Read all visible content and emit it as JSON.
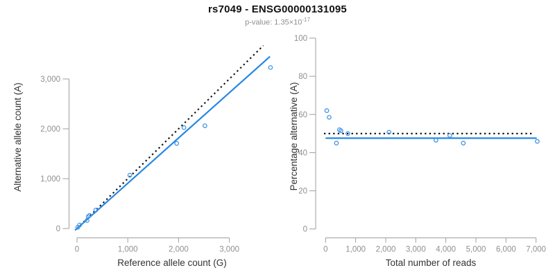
{
  "header": {
    "title": "rs7049 - ENSG00000131095",
    "subtitle_text": "p-value: 1.35×10",
    "subtitle_exponent": "-17"
  },
  "colors": {
    "accent_blue": "#2787e4",
    "point_blue": "#4093e6",
    "dotted_black": "#141414",
    "axis_gray": "#9e9e9e",
    "tick_label_gray": "#8f8f8f",
    "axis_title_dark": "#333333"
  },
  "chart_data": [
    {
      "type": "scatter",
      "name": "allele-count-scatter",
      "xlabel": "Reference allele count (G)",
      "ylabel": "Alternative allele count (A)",
      "xlim": [
        0,
        3930
      ],
      "ylim": [
        0,
        3950
      ],
      "grid": false,
      "xticks": [
        0,
        1000,
        2000,
        3000
      ],
      "xtick_labels": [
        "0",
        "1,000",
        "2,000",
        "3,000"
      ],
      "yticks": [
        0,
        1000,
        2000,
        3000
      ],
      "ytick_labels": [
        "0",
        "1,000",
        "2,000",
        "3,000"
      ],
      "points": [
        [
          15,
          25
        ],
        [
          50,
          70
        ],
        [
          198,
          162
        ],
        [
          221,
          239
        ],
        [
          247,
          263
        ],
        [
          370,
          370
        ],
        [
          1040,
          1070
        ],
        [
          1963,
          1707
        ],
        [
          2106,
          2024
        ],
        [
          2519,
          2061
        ],
        [
          3810,
          3230
        ]
      ],
      "lines": [
        {
          "style": "dotted",
          "name": "identity-line",
          "slope": 1,
          "intercept": 0
        },
        {
          "style": "solid",
          "name": "regression-line",
          "slope": 0.908,
          "intercept": 0
        }
      ]
    },
    {
      "type": "scatter",
      "name": "percentage-reads-scatter",
      "xlabel": "Total number of reads",
      "ylabel": "Percentage alternative (A)",
      "xlim": [
        0,
        7250
      ],
      "ylim": [
        0,
        100
      ],
      "grid": false,
      "xticks": [
        0,
        1000,
        2000,
        3000,
        4000,
        5000,
        6000,
        7000
      ],
      "xtick_labels": [
        "0",
        "1,000",
        "2,000",
        "3,000",
        "4,000",
        "5,000",
        "6,000",
        "7,000"
      ],
      "yticks": [
        0,
        20,
        40,
        60,
        80,
        100
      ],
      "ytick_labels": [
        "0",
        "20",
        "40",
        "60",
        "80",
        "100"
      ],
      "points": [
        [
          40,
          62
        ],
        [
          120,
          58.5
        ],
        [
          360,
          45
        ],
        [
          460,
          52
        ],
        [
          510,
          51.5
        ],
        [
          740,
          50
        ],
        [
          2110,
          50.7
        ],
        [
          3670,
          46.5
        ],
        [
          4130,
          49
        ],
        [
          4580,
          45
        ],
        [
          7040,
          45.9
        ]
      ],
      "lines": [
        {
          "style": "dotted",
          "name": "expected-50-percent-line",
          "y": 50
        },
        {
          "style": "solid",
          "name": "fitted-percentage-line",
          "y": 47.6
        }
      ]
    }
  ]
}
